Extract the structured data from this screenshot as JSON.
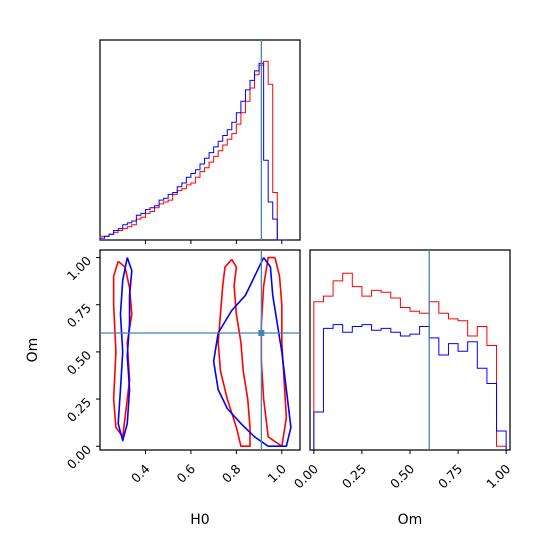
{
  "chart_data": {
    "type": "corner",
    "parameters": [
      "H0",
      "Om"
    ],
    "truths": {
      "H0": 0.91,
      "Om": 0.6
    },
    "colors": {
      "set_a": "#ff0000",
      "set_b": "#0000ff",
      "truth": "#4682b4"
    },
    "grid": false,
    "panels": [
      {
        "id": "hist-H0",
        "type": "histogram",
        "xlabel": "",
        "xlim": [
          0.2,
          1.08
        ],
        "ylim": [
          0,
          1
        ],
        "xticks": [
          0.4,
          0.6,
          0.8,
          1.0
        ],
        "show_tick_labels": false,
        "bins": [
          0.2,
          0.22,
          0.24,
          0.26,
          0.28,
          0.3,
          0.32,
          0.34,
          0.36,
          0.38,
          0.4,
          0.42,
          0.44,
          0.46,
          0.48,
          0.5,
          0.52,
          0.54,
          0.56,
          0.58,
          0.6,
          0.62,
          0.64,
          0.66,
          0.68,
          0.7,
          0.72,
          0.74,
          0.76,
          0.78,
          0.8,
          0.82,
          0.84,
          0.86,
          0.88,
          0.9,
          0.92,
          0.94,
          0.96,
          0.98,
          1.0,
          1.02
        ],
        "series": [
          {
            "color": "#ff0000",
            "values": [
              0.02,
              0.02,
              0.03,
              0.04,
              0.05,
              0.06,
              0.07,
              0.08,
              0.11,
              0.12,
              0.14,
              0.15,
              0.17,
              0.19,
              0.2,
              0.21,
              0.24,
              0.26,
              0.27,
              0.29,
              0.3,
              0.33,
              0.36,
              0.38,
              0.41,
              0.44,
              0.47,
              0.5,
              0.53,
              0.56,
              0.61,
              0.67,
              0.73,
              0.8,
              0.87,
              0.92,
              0.94,
              0.82,
              0.25,
              0.0,
              0.0
            ]
          },
          {
            "color": "#0000ff",
            "values": [
              0.01,
              0.02,
              0.03,
              0.05,
              0.06,
              0.08,
              0.09,
              0.1,
              0.13,
              0.14,
              0.16,
              0.17,
              0.18,
              0.21,
              0.22,
              0.24,
              0.25,
              0.28,
              0.3,
              0.33,
              0.35,
              0.37,
              0.4,
              0.43,
              0.46,
              0.49,
              0.52,
              0.55,
              0.58,
              0.62,
              0.67,
              0.73,
              0.79,
              0.84,
              0.89,
              0.93,
              0.42,
              0.2,
              0.11,
              0.0,
              0.0
            ]
          }
        ]
      },
      {
        "id": "contour-H0-Om",
        "type": "contour",
        "xlabel": "H0",
        "ylabel": "Om",
        "xlim": [
          0.2,
          1.08
        ],
        "ylim": [
          -0.02,
          1.04
        ],
        "xticks": [
          0.4,
          0.6,
          0.8,
          1.0
        ],
        "xtick_labels": [
          "0.4",
          "0.6",
          "0.8",
          "1.0"
        ],
        "yticks": [
          0.0,
          0.25,
          0.5,
          0.75,
          1.0
        ],
        "ytick_labels": [
          "0.00",
          "0.25",
          "0.50",
          "0.75",
          "1.00"
        ],
        "contours": [
          {
            "color": "#ff0000",
            "points": [
              [
                0.28,
                0.98
              ],
              [
                0.31,
                0.95
              ],
              [
                0.33,
                0.84
              ],
              [
                0.34,
                0.7
              ],
              [
                0.32,
                0.55
              ],
              [
                0.33,
                0.35
              ],
              [
                0.31,
                0.15
              ],
              [
                0.3,
                0.05
              ],
              [
                0.27,
                0.1
              ],
              [
                0.26,
                0.25
              ],
              [
                0.27,
                0.5
              ],
              [
                0.26,
                0.75
              ],
              [
                0.26,
                0.9
              ],
              [
                0.28,
                0.98
              ]
            ]
          },
          {
            "color": "#ff0000",
            "points": [
              [
                0.78,
                0.99
              ],
              [
                0.8,
                0.95
              ],
              [
                0.79,
                0.85
              ],
              [
                0.8,
                0.7
              ],
              [
                0.82,
                0.55
              ],
              [
                0.83,
                0.4
              ],
              [
                0.85,
                0.25
              ],
              [
                0.86,
                0.1
              ],
              [
                0.86,
                0.0
              ],
              [
                0.82,
                0.0
              ],
              [
                0.8,
                0.1
              ],
              [
                0.76,
                0.25
              ],
              [
                0.73,
                0.4
              ],
              [
                0.72,
                0.55
              ],
              [
                0.73,
                0.7
              ],
              [
                0.74,
                0.85
              ],
              [
                0.75,
                0.95
              ],
              [
                0.78,
                0.99
              ]
            ]
          },
          {
            "color": "#ff0000",
            "points": [
              [
                0.97,
                1.0
              ],
              [
                0.99,
                0.9
              ],
              [
                1.0,
                0.75
              ],
              [
                1.0,
                0.55
              ],
              [
                1.01,
                0.35
              ],
              [
                1.02,
                0.15
              ],
              [
                1.0,
                0.0
              ],
              [
                0.94,
                0.05
              ],
              [
                0.92,
                0.25
              ],
              [
                0.91,
                0.45
              ],
              [
                0.91,
                0.65
              ],
              [
                0.92,
                0.85
              ],
              [
                0.94,
                1.0
              ],
              [
                0.97,
                1.0
              ]
            ]
          },
          {
            "color": "#0000ff",
            "points": [
              [
                0.32,
                1.0
              ],
              [
                0.34,
                0.93
              ],
              [
                0.33,
                0.8
              ],
              [
                0.33,
                0.65
              ],
              [
                0.32,
                0.48
              ],
              [
                0.33,
                0.3
              ],
              [
                0.32,
                0.12
              ],
              [
                0.3,
                0.03
              ],
              [
                0.28,
                0.12
              ],
              [
                0.29,
                0.3
              ],
              [
                0.3,
                0.5
              ],
              [
                0.29,
                0.7
              ],
              [
                0.3,
                0.88
              ],
              [
                0.32,
                1.0
              ]
            ]
          },
          {
            "color": "#0000ff",
            "points": [
              [
                0.92,
                1.0
              ],
              [
                0.95,
                0.95
              ],
              [
                0.96,
                0.8
              ],
              [
                0.98,
                0.65
              ],
              [
                1.0,
                0.5
              ],
              [
                1.02,
                0.3
              ],
              [
                1.04,
                0.1
              ],
              [
                1.02,
                0.0
              ],
              [
                0.94,
                0.0
              ],
              [
                0.88,
                0.05
              ],
              [
                0.82,
                0.12
              ],
              [
                0.76,
                0.2
              ],
              [
                0.72,
                0.3
              ],
              [
                0.7,
                0.45
              ],
              [
                0.72,
                0.6
              ],
              [
                0.78,
                0.72
              ],
              [
                0.84,
                0.8
              ],
              [
                0.88,
                0.9
              ],
              [
                0.92,
                1.0
              ]
            ]
          }
        ]
      },
      {
        "id": "hist-Om",
        "type": "histogram",
        "xlabel": "Om",
        "xlim": [
          -0.02,
          1.02
        ],
        "ylim": [
          0,
          1
        ],
        "xticks": [
          0.0,
          0.25,
          0.5,
          0.75,
          1.0
        ],
        "xtick_labels": [
          "0.00",
          "0.25",
          "0.50",
          "0.75",
          "1.00"
        ],
        "bins": [
          0.0,
          0.05,
          0.1,
          0.15,
          0.2,
          0.25,
          0.3,
          0.35,
          0.4,
          0.45,
          0.5,
          0.55,
          0.6,
          0.65,
          0.7,
          0.75,
          0.8,
          0.85,
          0.9,
          0.95,
          1.0
        ],
        "series": [
          {
            "color": "#ff0000",
            "values": [
              0.78,
              0.81,
              0.89,
              0.93,
              0.86,
              0.81,
              0.84,
              0.83,
              0.8,
              0.75,
              0.73,
              0.72,
              0.78,
              0.72,
              0.69,
              0.68,
              0.6,
              0.65,
              0.55,
              0.02
            ]
          },
          {
            "color": "#0000ff",
            "values": [
              0.2,
              0.64,
              0.66,
              0.62,
              0.65,
              0.66,
              0.63,
              0.64,
              0.62,
              0.6,
              0.61,
              0.65,
              0.59,
              0.5,
              0.56,
              0.52,
              0.57,
              0.43,
              0.35,
              0.1
            ]
          }
        ]
      }
    ]
  }
}
